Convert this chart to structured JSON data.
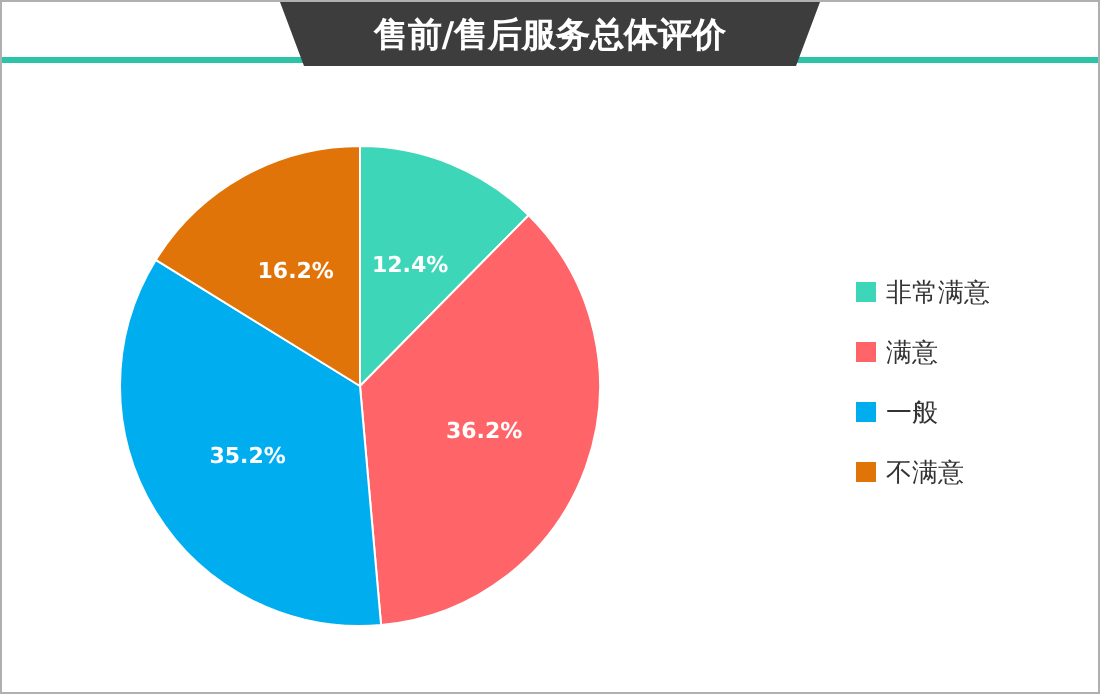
{
  "chart_data": {
    "type": "pie",
    "title": "售前/售后服务总体评价",
    "categories": [
      "非常满意",
      "满意",
      "一般",
      "不满意"
    ],
    "values": [
      12.4,
      36.2,
      35.2,
      16.2
    ],
    "colors": [
      "#3dd6b8",
      "#ff6468",
      "#00aeef",
      "#e07408"
    ],
    "value_labels": [
      "12.4%",
      "36.2%",
      "35.2%",
      "16.2%"
    ],
    "legend": "right"
  }
}
